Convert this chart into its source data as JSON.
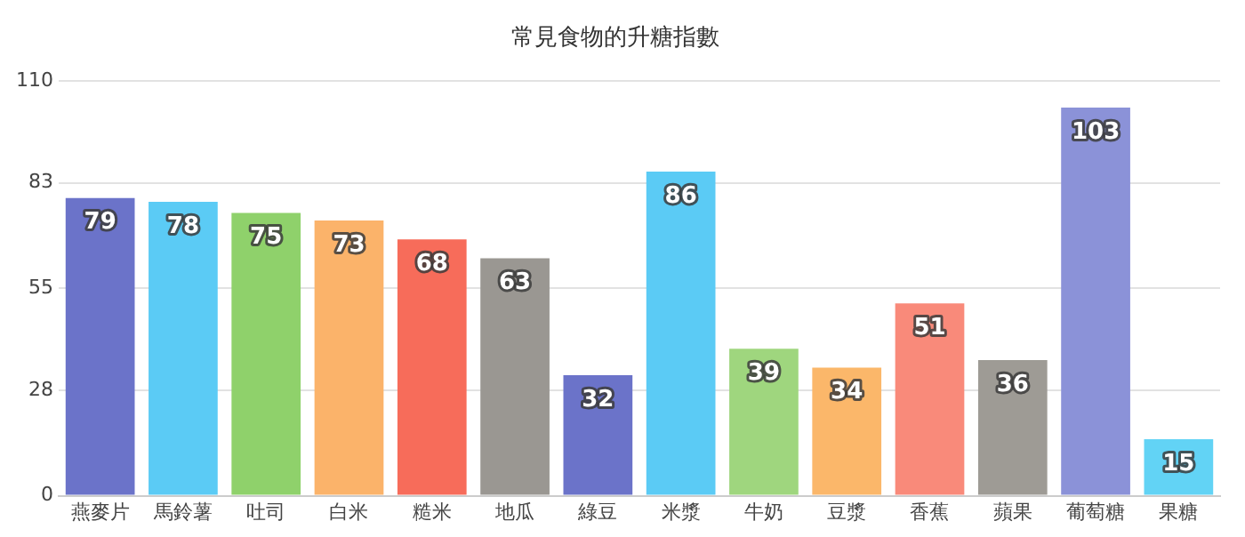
{
  "chart_data": {
    "type": "bar",
    "title": "常見食物的升糖指數",
    "categories": [
      "燕麥片",
      "馬鈴薯",
      "吐司",
      "白米",
      "糙米",
      "地瓜",
      "綠豆",
      "米漿",
      "牛奶",
      "豆漿",
      "香蕉",
      "蘋果",
      "葡萄糖",
      "果糖"
    ],
    "values": [
      79,
      78,
      75,
      73,
      68,
      63,
      32,
      86,
      39,
      34,
      51,
      36,
      103,
      15
    ],
    "colors": [
      "#6b73c9",
      "#5bcbf5",
      "#8fd16b",
      "#fbb36a",
      "#f76c5a",
      "#9a9792",
      "#6b73c9",
      "#5bcbf5",
      "#9fd67e",
      "#fbb76a",
      "#f98a7a",
      "#9e9b95",
      "#8b92d8",
      "#62d3f5"
    ],
    "ylim": [
      0,
      110
    ],
    "yticks": [
      0,
      28,
      55,
      83,
      110
    ],
    "grid": "y",
    "legend": false,
    "data_labels": true
  }
}
